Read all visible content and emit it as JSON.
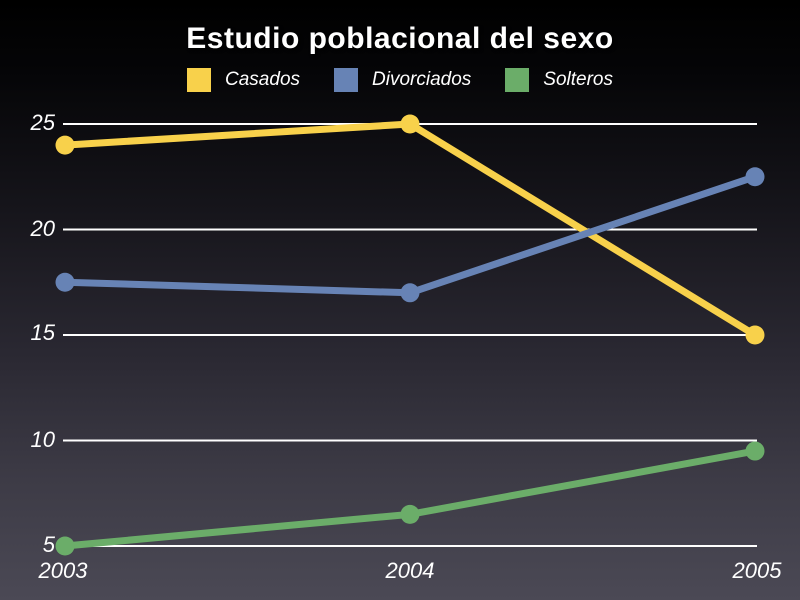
{
  "chart_data": {
    "type": "line",
    "title": "Estudio poblacional del sexo",
    "x_labels": [
      "2003",
      "2004",
      "2005"
    ],
    "series": [
      {
        "name": "Casados",
        "color": "#F8D14B",
        "values": [
          24,
          25,
          15
        ]
      },
      {
        "name": "Divorciados",
        "color": "#6783B5",
        "values": [
          17.5,
          17,
          22.5
        ]
      },
      {
        "name": "Solteros",
        "color": "#6BAD69",
        "values": [
          5,
          6.5,
          9.5
        ]
      }
    ],
    "yticks": [
      5,
      10,
      15,
      20,
      25
    ],
    "ytick_labels": [
      "5",
      "10",
      "15",
      "20",
      "25"
    ],
    "ylim": [
      5,
      25
    ],
    "grid": true,
    "gridline_color": "#FFFFFF",
    "legend_position": "top",
    "text_color": "#FFFFFF",
    "background": {
      "top": "#000000",
      "bottom": "#4B4955"
    }
  }
}
